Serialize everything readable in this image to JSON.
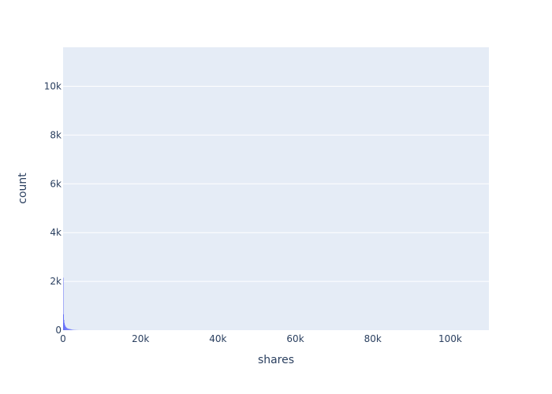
{
  "chart_data": {
    "type": "histogram",
    "title": "",
    "xlabel": "shares",
    "ylabel": "count",
    "xlim": [
      0,
      110000
    ],
    "ylim": [
      0,
      11600
    ],
    "x_ticks": [
      {
        "value": 0,
        "label": "0"
      },
      {
        "value": 20000,
        "label": "20k"
      },
      {
        "value": 40000,
        "label": "40k"
      },
      {
        "value": 60000,
        "label": "60k"
      },
      {
        "value": 80000,
        "label": "80k"
      },
      {
        "value": 100000,
        "label": "100k"
      }
    ],
    "y_ticks": [
      {
        "value": 0,
        "label": "0"
      },
      {
        "value": 2000,
        "label": "2k"
      },
      {
        "value": 4000,
        "label": "4k"
      },
      {
        "value": 6000,
        "label": "6k"
      },
      {
        "value": 8000,
        "label": "8k"
      },
      {
        "value": 10000,
        "label": "10k"
      }
    ],
    "bin_width": 100,
    "bins": [
      {
        "x": 0,
        "count": 2150
      },
      {
        "x": 100,
        "count": 650
      },
      {
        "x": 200,
        "count": 420
      },
      {
        "x": 300,
        "count": 300
      },
      {
        "x": 400,
        "count": 230
      },
      {
        "x": 500,
        "count": 180
      },
      {
        "x": 600,
        "count": 150
      },
      {
        "x": 700,
        "count": 130
      },
      {
        "x": 800,
        "count": 110
      },
      {
        "x": 900,
        "count": 95
      },
      {
        "x": 1000,
        "count": 85
      },
      {
        "x": 1100,
        "count": 75
      },
      {
        "x": 1200,
        "count": 68
      },
      {
        "x": 1300,
        "count": 62
      },
      {
        "x": 1400,
        "count": 58
      },
      {
        "x": 1500,
        "count": 54
      },
      {
        "x": 1600,
        "count": 50
      },
      {
        "x": 1700,
        "count": 46
      },
      {
        "x": 1800,
        "count": 42
      },
      {
        "x": 1900,
        "count": 38
      },
      {
        "x": 2000,
        "count": 34
      },
      {
        "x": 2100,
        "count": 30
      },
      {
        "x": 2200,
        "count": 26
      },
      {
        "x": 2300,
        "count": 22
      },
      {
        "x": 2400,
        "count": 19
      },
      {
        "x": 2500,
        "count": 16
      },
      {
        "x": 2600,
        "count": 14
      },
      {
        "x": 2700,
        "count": 12
      },
      {
        "x": 2800,
        "count": 10
      },
      {
        "x": 2900,
        "count": 9
      },
      {
        "x": 3000,
        "count": 8
      },
      {
        "x": 3100,
        "count": 7
      },
      {
        "x": 3200,
        "count": 6
      },
      {
        "x": 3300,
        "count": 5
      },
      {
        "x": 3400,
        "count": 4
      },
      {
        "x": 3500,
        "count": 3
      },
      {
        "x": 3600,
        "count": 3
      },
      {
        "x": 3700,
        "count": 2
      },
      {
        "x": 3800,
        "count": 2
      },
      {
        "x": 3900,
        "count": 1
      }
    ],
    "bar_color": "#636efa",
    "plot_bg": "#e5ecf6",
    "grid": true,
    "grid_color": "#ffffff"
  }
}
